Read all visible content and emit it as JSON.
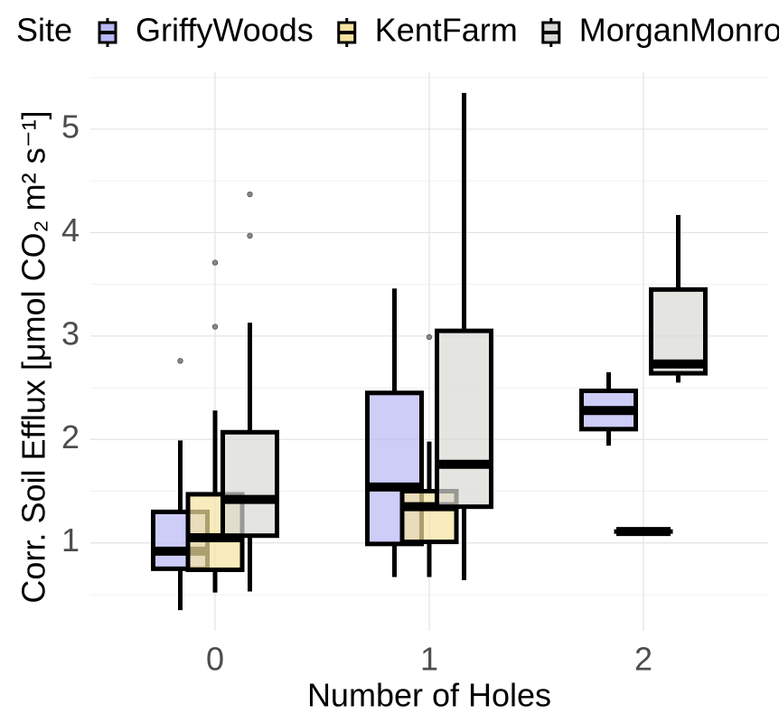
{
  "chart_data": {
    "type": "boxplot",
    "legend_title": "Site",
    "x_label": "Number of Holes",
    "y_label": "Corr. Soil Efflux  [μmol CO₂ m²  s⁻¹]",
    "categories": [
      "0",
      "1",
      "2"
    ],
    "ylim": [
      0.15,
      5.55
    ],
    "yticks": [
      1,
      2,
      3,
      4,
      5
    ],
    "minor_yticks": [
      0.5,
      1.5,
      2.5,
      3.5,
      4.5,
      5.5
    ],
    "grid": true,
    "legend_position": "top",
    "series": [
      {
        "name": "GriffyWoods",
        "color": "#b8b8f5",
        "boxes": [
          {
            "low": 0.35,
            "q1": 0.75,
            "median": 0.92,
            "q3": 1.3,
            "high": 1.99,
            "outliers": [
              2.76
            ]
          },
          {
            "low": 0.67,
            "q1": 0.99,
            "median": 1.54,
            "q3": 2.45,
            "high": 3.46,
            "outliers": []
          },
          {
            "low": 1.94,
            "q1": 2.1,
            "median": 2.28,
            "q3": 2.47,
            "high": 2.65,
            "outliers": []
          }
        ]
      },
      {
        "name": "KentFarm",
        "color": "#f5e2a0",
        "boxes": [
          {
            "low": 0.52,
            "q1": 0.74,
            "median": 1.05,
            "q3": 1.47,
            "high": 2.28,
            "outliers": [
              3.09,
              3.71
            ]
          },
          {
            "low": 0.67,
            "q1": 1.01,
            "median": 1.35,
            "q3": 1.5,
            "high": 1.98,
            "outliers": [
              2.99
            ]
          },
          {
            "low": 1.11,
            "q1": 1.11,
            "median": 1.11,
            "q3": 1.11,
            "high": 1.11,
            "outliers": []
          }
        ]
      },
      {
        "name": "MorganMonroe",
        "color": "#d8d8d4",
        "boxes": [
          {
            "low": 0.53,
            "q1": 1.07,
            "median": 1.42,
            "q3": 2.07,
            "high": 3.13,
            "outliers": [
              3.97,
              4.37
            ]
          },
          {
            "low": 0.64,
            "q1": 1.35,
            "median": 1.76,
            "q3": 3.05,
            "high": 5.35,
            "outliers": []
          },
          {
            "low": 2.55,
            "q1": 2.64,
            "median": 2.73,
            "q3": 3.45,
            "high": 4.17,
            "outliers": []
          }
        ]
      }
    ]
  }
}
